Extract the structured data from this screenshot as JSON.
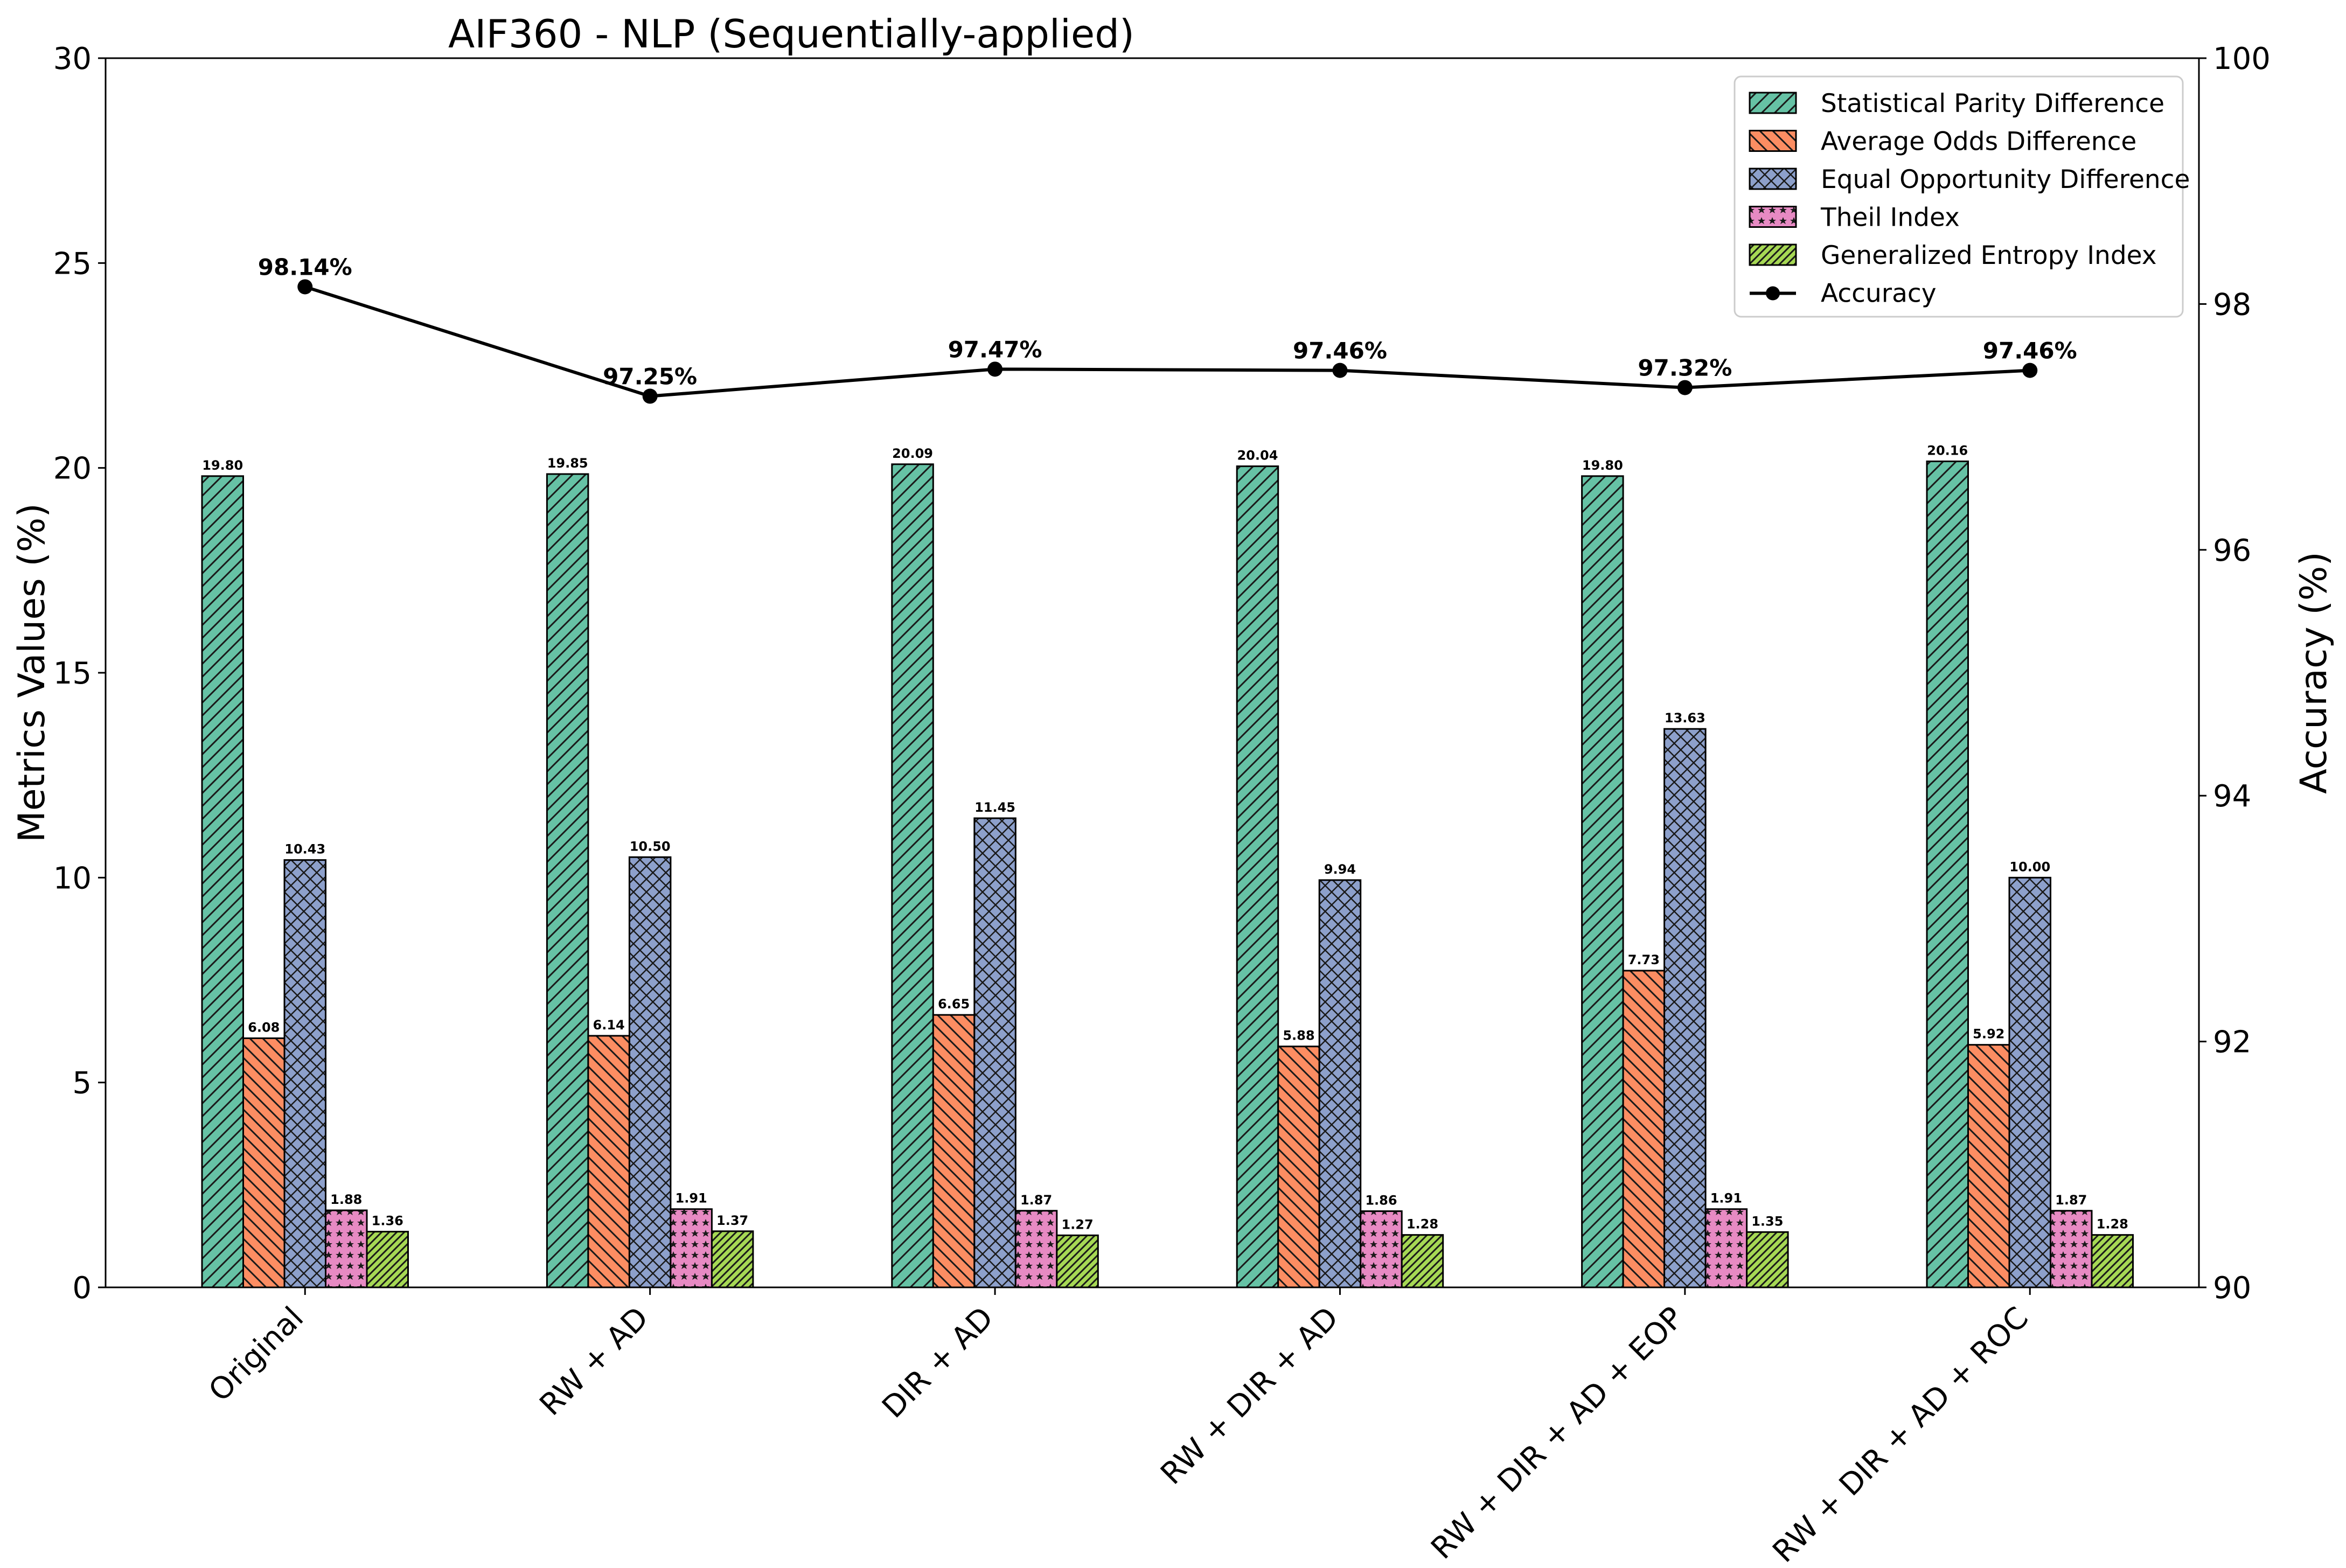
{
  "chart_data": {
    "type": "bar",
    "title": "AIF360 - NLP (Sequentially-applied)",
    "ylabel": "Metrics Values (%)",
    "y2label": "Accuracy (%)",
    "ylim": [
      0,
      30
    ],
    "y2lim": [
      90,
      100
    ],
    "yticks": [
      "0",
      "5",
      "10",
      "15",
      "20",
      "25",
      "30"
    ],
    "y2ticks": [
      "90",
      "92",
      "94",
      "96",
      "98",
      "100"
    ],
    "legend_position": "top-right",
    "categories": [
      "Original",
      "RW + AD",
      "DIR + AD",
      "RW + DIR + AD",
      "RW + DIR + AD + EOP",
      "RW + DIR + AD + ROC"
    ],
    "series": [
      {
        "name": "Statistical Parity Difference",
        "color": "#66c2a5",
        "hatch": "diagonal",
        "values": [
          19.8,
          19.85,
          20.09,
          20.04,
          19.8,
          20.16
        ],
        "labels": [
          "19.80",
          "19.85",
          "20.09",
          "20.04",
          "19.80",
          "20.16"
        ]
      },
      {
        "name": "Average Odds Difference",
        "color": "#fc8d62",
        "hatch": "backdiagonal",
        "values": [
          6.08,
          6.14,
          6.65,
          5.88,
          7.73,
          5.92
        ],
        "labels": [
          "6.08",
          "6.14",
          "6.65",
          "5.88",
          "7.73",
          "5.92"
        ]
      },
      {
        "name": "Equal Opportunity Difference",
        "color": "#8da0cb",
        "hatch": "crosshatch",
        "values": [
          10.43,
          10.5,
          11.45,
          9.94,
          13.63,
          10.0
        ],
        "labels": [
          "10.43",
          "10.50",
          "11.45",
          "9.94",
          "13.63",
          "10.00"
        ]
      },
      {
        "name": "Theil Index",
        "color": "#e78ac3",
        "hatch": "stars",
        "values": [
          1.88,
          1.91,
          1.87,
          1.86,
          1.91,
          1.87
        ],
        "labels": [
          "1.88",
          "1.91",
          "1.87",
          "1.86",
          "1.91",
          "1.87"
        ]
      },
      {
        "name": "Generalized Entropy Index",
        "color": "#a6d854",
        "hatch": "diagonal-fine",
        "values": [
          1.36,
          1.37,
          1.27,
          1.28,
          1.35,
          1.28
        ],
        "labels": [
          "1.36",
          "1.37",
          "1.27",
          "1.28",
          "1.35",
          "1.28"
        ]
      }
    ],
    "accuracy": {
      "name": "Accuracy",
      "color": "#000000",
      "values": [
        98.14,
        97.25,
        97.47,
        97.46,
        97.32,
        97.46
      ],
      "labels": [
        "98.14%",
        "97.25%",
        "97.47%",
        "97.46%",
        "97.32%",
        "97.46%"
      ]
    }
  }
}
